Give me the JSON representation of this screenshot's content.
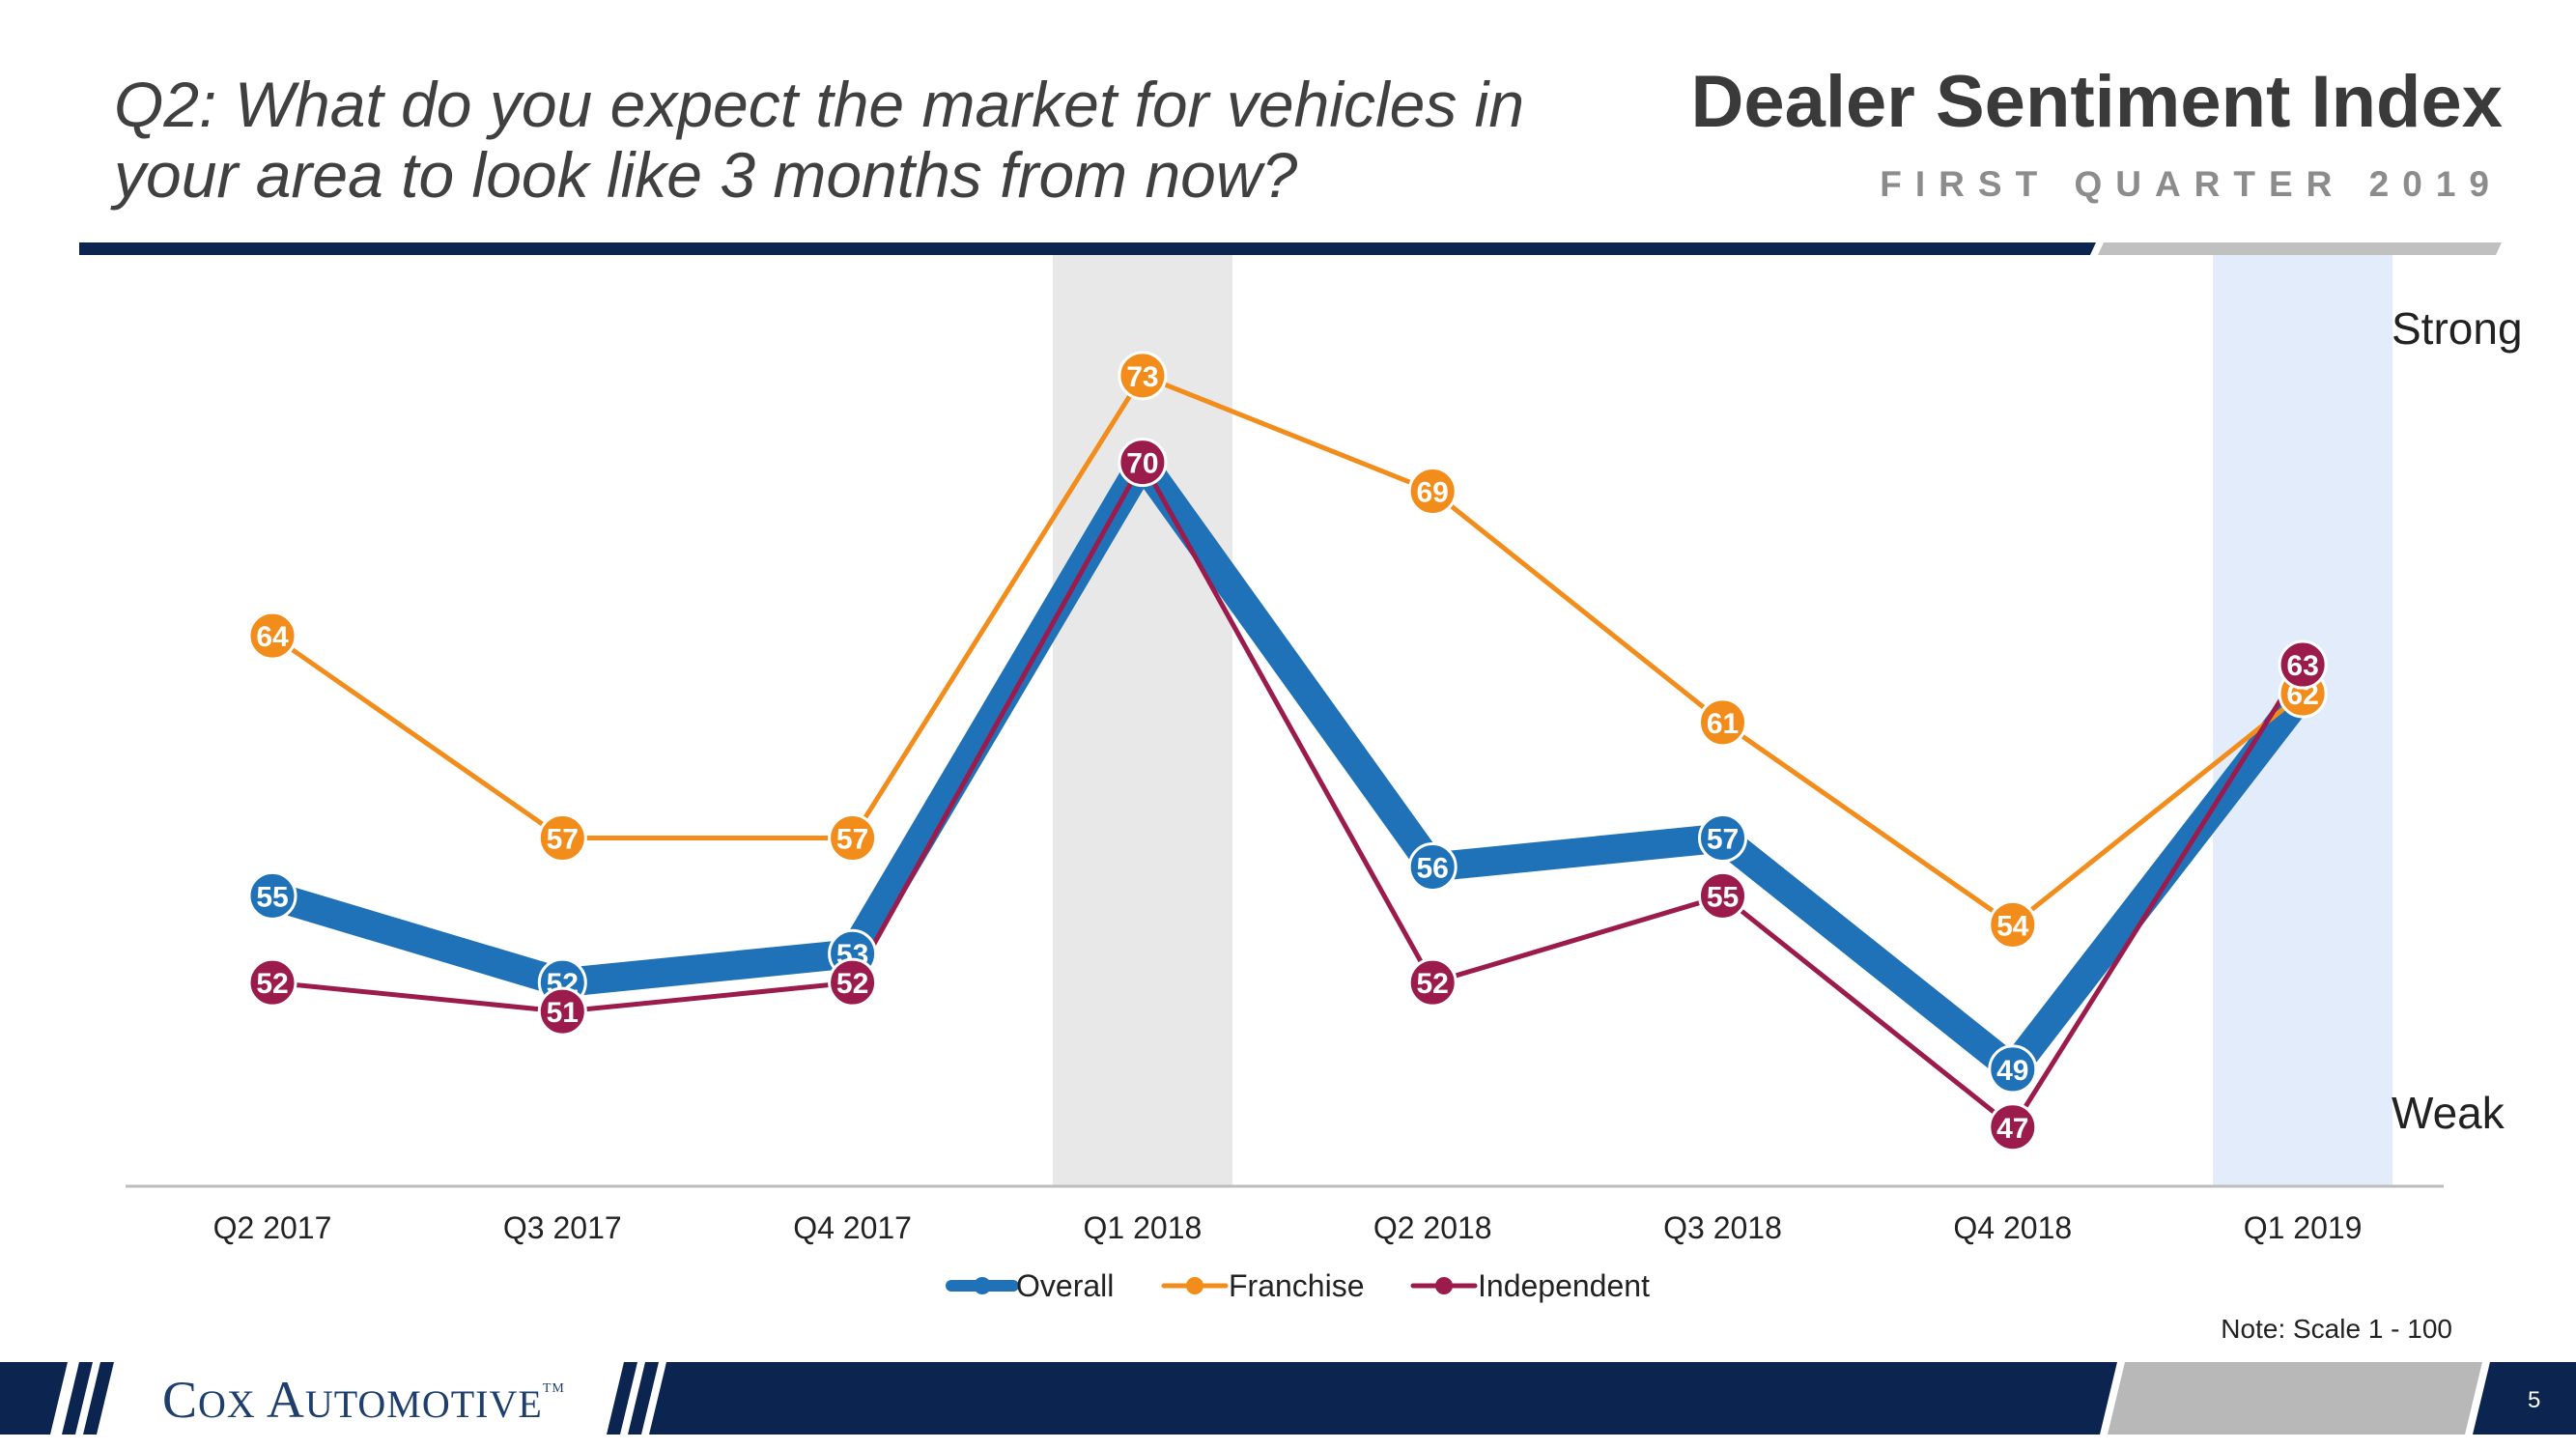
{
  "header": {
    "question": "Q2: What do you expect the market for vehicles in your area to look like 3 months from now?",
    "title": "Dealer Sentiment Index",
    "subtitle": "FIRST QUARTER 2019"
  },
  "chart_data": {
    "type": "line",
    "categories": [
      "Q2 2017",
      "Q3 2017",
      "Q4 2017",
      "Q1 2018",
      "Q2 2018",
      "Q3 2018",
      "Q4 2018",
      "Q1 2019"
    ],
    "series": [
      {
        "name": "Overall",
        "color": "#1f72b8",
        "values": [
          55,
          52,
          53,
          70,
          56,
          57,
          49,
          62
        ]
      },
      {
        "name": "Franchise",
        "color": "#f28c1a",
        "values": [
          64,
          57,
          57,
          73,
          69,
          61,
          54,
          62
        ]
      },
      {
        "name": "Independent",
        "color": "#9b1b4c",
        "values": [
          52,
          51,
          52,
          70,
          52,
          55,
          47,
          63
        ]
      }
    ],
    "labeled_values": {
      "Overall": [
        "55",
        "52",
        "53",
        "",
        "56",
        "57",
        "49",
        ""
      ],
      "Franchise": [
        "64",
        "57",
        "57",
        "73",
        "69",
        "61",
        "54",
        "62"
      ],
      "Independent": [
        "52",
        "51",
        "52",
        "70",
        "52",
        "55",
        "47",
        "63"
      ]
    },
    "highlighted_categories": [
      {
        "category": "Q1 2018",
        "color": "#e8e8e8"
      },
      {
        "category": "Q1 2019",
        "color": "#e3ecfa"
      }
    ],
    "ylim": [
      44,
      76
    ],
    "y_annotations": {
      "top": "Strong",
      "bottom": "Weak"
    },
    "legend_position": "bottom"
  },
  "note": "Note: Scale 1 - 100",
  "footer": {
    "logo_initial_1": "C",
    "logo_rest_1": "OX ",
    "logo_initial_2": "A",
    "logo_rest_2": "UTOMOTIVE",
    "logo_tm": "TM",
    "page_number": "5"
  },
  "colors": {
    "navy": "#0c2550",
    "gray_bar": "#b8b8b8"
  }
}
